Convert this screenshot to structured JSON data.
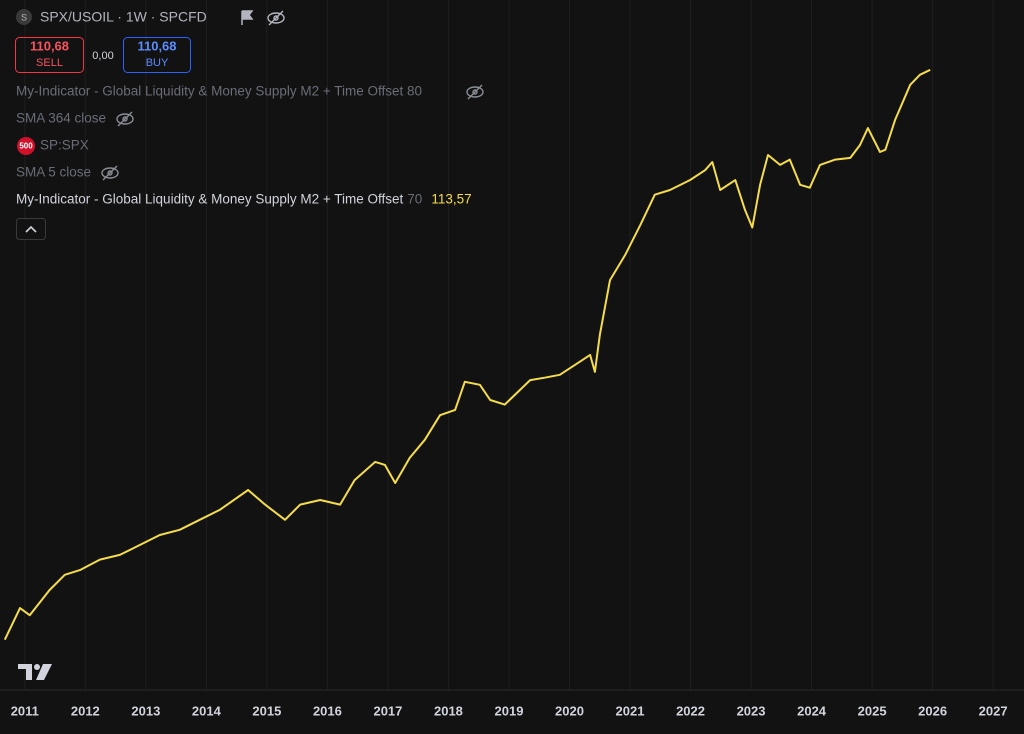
{
  "ui": {
    "symbol_icon": "S",
    "symbol": "SPX/USOIL · 1W · SPCFD",
    "sell_price": "110,68",
    "sell": "SELL",
    "spread": "0,00",
    "buy_price": "110,68",
    "buy": "BUY",
    "indicators": [
      {
        "name": "My-Indicator - Global Liquidity & Money Supply M2 + Time Offset 80"
      },
      {
        "name": "SMA 364 close"
      },
      {
        "icon": "500",
        "name": "SP:SPX"
      },
      {
        "name": "SMA 5 close"
      },
      {
        "offset": "70",
        "value": "113,57"
      }
    ]
  },
  "chart_data": {
    "type": "line",
    "x": [
      2010.67,
      2010.92,
      2011.08,
      2011.41,
      2011.66,
      2011.91,
      2012.24,
      2012.57,
      2012.9,
      2013.23,
      2013.56,
      2013.89,
      2014.22,
      2014.69,
      2014.97,
      2015.3,
      2015.55,
      2015.88,
      2016.21,
      2016.45,
      2016.79,
      2016.95,
      2017.12,
      2017.36,
      2017.61,
      2017.86,
      2018.11,
      2018.27,
      2018.52,
      2018.69,
      2018.93,
      2019.18,
      2019.35,
      2019.59,
      2019.84,
      2020.09,
      2020.34,
      2020.42,
      2020.5,
      2020.67,
      2020.92,
      2021.17,
      2021.41,
      2021.66,
      2021.99,
      2022.24,
      2022.36,
      2022.49,
      2022.74,
      2022.9,
      2023.02,
      2023.15,
      2023.28,
      2023.48,
      2023.64,
      2023.81,
      2023.97,
      2024.14,
      2024.39,
      2024.64,
      2024.8,
      2024.93,
      2025.13,
      2025.22,
      2025.38,
      2025.63,
      2025.79,
      2025.96
    ],
    "series": [
      {
        "name": "My-Indicator - Global Liquidity & Money Supply M2 + Time Offset",
        "color": "#f5dc4a",
        "values": [
          16.1,
          21.5,
          20.3,
          24.6,
          27.2,
          28.0,
          29.8,
          30.6,
          32.3,
          34.0,
          34.9,
          36.6,
          38.3,
          41.7,
          39.2,
          36.6,
          39.2,
          40.0,
          39.2,
          43.4,
          46.5,
          46.0,
          42.9,
          47.2,
          50.3,
          54.5,
          55.4,
          60.2,
          59.7,
          57.1,
          56.3,
          58.8,
          60.5,
          60.9,
          61.4,
          63.1,
          64.8,
          61.9,
          68.2,
          77.6,
          81.9,
          87.0,
          92.2,
          93.0,
          94.7,
          96.4,
          97.8,
          93.0,
          94.7,
          89.6,
          86.6,
          93.9,
          99.0,
          97.3,
          98.2,
          93.9,
          93.4,
          97.3,
          98.2,
          98.5,
          100.7,
          103.6,
          99.5,
          99.9,
          105.0,
          111.0,
          112.7,
          113.57
        ]
      }
    ],
    "xlim": [
      2010.59,
      2027.51
    ],
    "xticks": [
      2011,
      2012,
      2013,
      2014,
      2015,
      2016,
      2017,
      2018,
      2019,
      2020,
      2021,
      2022,
      2023,
      2024,
      2025,
      2026,
      2027
    ],
    "ylim": [
      7.5,
      125.5
    ],
    "grid": true
  }
}
